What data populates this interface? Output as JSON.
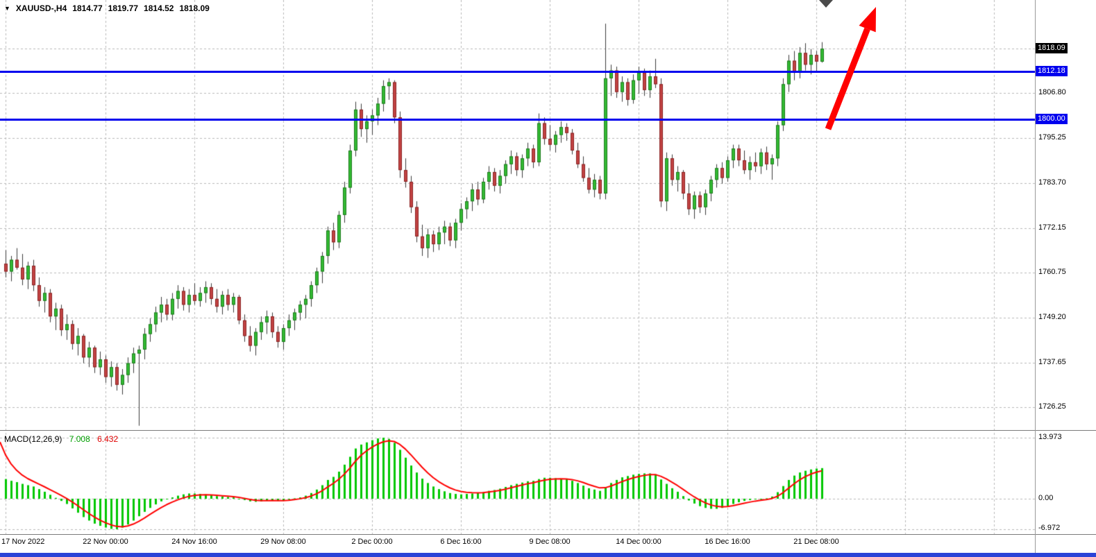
{
  "header": {
    "marker_icon": "▼",
    "symbol_period": "XAUUSD-,H4",
    "ohlc": {
      "open": "1814.77",
      "high": "1819.77",
      "low": "1814.52",
      "close": "1818.09"
    }
  },
  "macd_panel": {
    "title": "MACD(12,26,9)",
    "main_value": "7.008",
    "signal_value": "6.432",
    "axis": {
      "max": "13.973",
      "zero": "0.00",
      "min": "-6.972"
    }
  },
  "price_axis": {
    "labels": [
      {
        "text": "1818.09",
        "price": 1818.09,
        "style": "current"
      },
      {
        "text": "1812.18",
        "price": 1812.18,
        "style": "line"
      },
      {
        "text": "1806.80",
        "price": 1806.8,
        "style": "grid"
      },
      {
        "text": "1800.00",
        "price": 1800.0,
        "style": "line"
      },
      {
        "text": "1795.25",
        "price": 1795.25,
        "style": "grid"
      },
      {
        "text": "1783.70",
        "price": 1783.7,
        "style": "grid"
      },
      {
        "text": "1772.15",
        "price": 1772.15,
        "style": "grid"
      },
      {
        "text": "1760.75",
        "price": 1760.75,
        "style": "grid"
      },
      {
        "text": "1749.20",
        "price": 1749.2,
        "style": "grid"
      },
      {
        "text": "1737.65",
        "price": 1737.65,
        "style": "grid"
      },
      {
        "text": "1726.25",
        "price": 1726.25,
        "style": "grid"
      }
    ]
  },
  "colors": {
    "background": "#ffffff",
    "grid": "#b9b9b9",
    "up_fill": "#33bb33",
    "up_border": "#1e7a1e",
    "down_fill": "#c24343",
    "down_border": "#8a2323",
    "wick": "#3a3a3a",
    "hline": "#0000ee",
    "current_label_bg": "#000000",
    "macd_hist": "#00c800",
    "macd_signal": "#ff0000",
    "arrow": "#ff0000",
    "bottom_bar": "#2b43d7"
  },
  "chart_data": {
    "type": "candlestick",
    "symbol": "XAUUSD-",
    "timeframe": "H4",
    "current_price": 1818.09,
    "grid_prices": [
      1806.8,
      1795.25,
      1783.7,
      1772.15,
      1760.75,
      1749.2,
      1737.65,
      1726.25
    ],
    "hlines": [
      {
        "price": 1812.18,
        "label": "1812.18"
      },
      {
        "price": 1800.0,
        "label": "1800.00"
      }
    ],
    "time_ticks": [
      {
        "label": "17 Nov 2022",
        "bar": 0
      },
      {
        "label": "22 Nov 00:00",
        "bar": 18
      },
      {
        "label": "24 Nov 16:00",
        "bar": 34
      },
      {
        "label": "29 Nov 08:00",
        "bar": 50
      },
      {
        "label": "2 Dec 00:00",
        "bar": 66
      },
      {
        "label": "6 Dec 16:00",
        "bar": 82
      },
      {
        "label": "9 Dec 08:00",
        "bar": 98
      },
      {
        "label": "14 Dec 00:00",
        "bar": 114
      },
      {
        "label": "16 Dec 16:00",
        "bar": 130
      },
      {
        "label": "21 Dec 08:00",
        "bar": 146
      }
    ],
    "extra_grid_bars": [
      162,
      178
    ],
    "candles_ohlc": [
      [
        1763.0,
        1766.5,
        1759.5,
        1761.0
      ],
      [
        1761.0,
        1765.0,
        1758.5,
        1764.0
      ],
      [
        1764.0,
        1767.0,
        1761.5,
        1762.0
      ],
      [
        1762.0,
        1765.5,
        1757.5,
        1759.0
      ],
      [
        1759.0,
        1763.5,
        1756.5,
        1762.5
      ],
      [
        1762.5,
        1764.0,
        1756.0,
        1757.5
      ],
      [
        1757.5,
        1759.5,
        1752.0,
        1753.5
      ],
      [
        1753.5,
        1757.0,
        1750.5,
        1755.5
      ],
      [
        1755.5,
        1756.5,
        1748.0,
        1749.5
      ],
      [
        1749.5,
        1753.0,
        1746.0,
        1751.5
      ],
      [
        1751.5,
        1752.5,
        1744.5,
        1746.0
      ],
      [
        1746.0,
        1750.0,
        1743.5,
        1747.5
      ],
      [
        1747.5,
        1748.5,
        1741.0,
        1742.5
      ],
      [
        1742.5,
        1746.5,
        1739.5,
        1744.5
      ],
      [
        1744.5,
        1745.0,
        1737.5,
        1739.0
      ],
      [
        1739.0,
        1743.0,
        1736.5,
        1741.5
      ],
      [
        1741.5,
        1742.0,
        1735.0,
        1736.5
      ],
      [
        1736.5,
        1740.5,
        1734.5,
        1738.5
      ],
      [
        1738.5,
        1739.5,
        1732.5,
        1734.0
      ],
      [
        1734.0,
        1738.0,
        1731.5,
        1736.5
      ],
      [
        1736.5,
        1737.5,
        1730.5,
        1732.0
      ],
      [
        1732.0,
        1736.0,
        1729.5,
        1734.5
      ],
      [
        1734.5,
        1739.0,
        1732.5,
        1737.5
      ],
      [
        1737.5,
        1741.5,
        1735.0,
        1740.0
      ],
      [
        1740.0,
        1742.0,
        1721.5,
        1741.0
      ],
      [
        1741.0,
        1746.5,
        1738.5,
        1745.0
      ],
      [
        1745.0,
        1749.0,
        1743.0,
        1747.5
      ],
      [
        1747.5,
        1752.0,
        1745.5,
        1750.5
      ],
      [
        1750.5,
        1754.5,
        1748.0,
        1752.5
      ],
      [
        1752.5,
        1754.0,
        1748.5,
        1750.0
      ],
      [
        1750.0,
        1755.5,
        1748.5,
        1754.0
      ],
      [
        1754.0,
        1757.5,
        1751.5,
        1756.0
      ],
      [
        1756.0,
        1757.0,
        1751.0,
        1752.5
      ],
      [
        1752.5,
        1756.5,
        1750.5,
        1755.0
      ],
      [
        1755.0,
        1758.0,
        1752.5,
        1753.5
      ],
      [
        1753.5,
        1757.0,
        1752.0,
        1755.5
      ],
      [
        1755.5,
        1758.5,
        1753.0,
        1757.0
      ],
      [
        1757.0,
        1758.0,
        1752.5,
        1754.0
      ],
      [
        1754.0,
        1756.5,
        1750.5,
        1752.0
      ],
      [
        1752.0,
        1756.0,
        1750.0,
        1755.0
      ],
      [
        1755.0,
        1756.5,
        1751.0,
        1752.5
      ],
      [
        1752.5,
        1755.5,
        1750.5,
        1754.5
      ],
      [
        1754.5,
        1755.0,
        1747.5,
        1748.5
      ],
      [
        1748.5,
        1750.0,
        1743.0,
        1744.5
      ],
      [
        1744.5,
        1747.0,
        1740.5,
        1742.0
      ],
      [
        1742.0,
        1746.5,
        1739.5,
        1745.5
      ],
      [
        1745.5,
        1749.5,
        1743.5,
        1748.0
      ],
      [
        1748.0,
        1751.0,
        1745.0,
        1749.5
      ],
      [
        1749.5,
        1750.5,
        1744.0,
        1745.5
      ],
      [
        1745.5,
        1747.0,
        1741.5,
        1743.0
      ],
      [
        1743.0,
        1747.5,
        1741.0,
        1746.5
      ],
      [
        1746.5,
        1750.0,
        1744.5,
        1748.5
      ],
      [
        1748.5,
        1751.5,
        1746.0,
        1750.5
      ],
      [
        1750.5,
        1753.5,
        1748.5,
        1752.5
      ],
      [
        1752.5,
        1755.0,
        1749.0,
        1754.0
      ],
      [
        1754.0,
        1758.5,
        1752.0,
        1757.5
      ],
      [
        1757.5,
        1762.0,
        1755.5,
        1761.0
      ],
      [
        1761.0,
        1766.0,
        1758.0,
        1765.0
      ],
      [
        1765.0,
        1772.5,
        1763.0,
        1771.5
      ],
      [
        1771.5,
        1773.5,
        1766.5,
        1768.5
      ],
      [
        1768.5,
        1776.5,
        1767.0,
        1775.5
      ],
      [
        1775.5,
        1784.0,
        1773.5,
        1782.5
      ],
      [
        1782.5,
        1793.5,
        1781.0,
        1792.0
      ],
      [
        1792.0,
        1804.5,
        1790.5,
        1802.5
      ],
      [
        1802.5,
        1804.0,
        1795.5,
        1797.5
      ],
      [
        1797.5,
        1801.0,
        1794.0,
        1799.5
      ],
      [
        1799.5,
        1802.5,
        1796.0,
        1801.0
      ],
      [
        1801.0,
        1805.5,
        1798.5,
        1804.0
      ],
      [
        1804.0,
        1810.0,
        1802.0,
        1808.5
      ],
      [
        1808.5,
        1810.5,
        1805.0,
        1809.5
      ],
      [
        1809.5,
        1810.0,
        1799.0,
        1800.5
      ],
      [
        1800.5,
        1802.0,
        1785.0,
        1787.0
      ],
      [
        1787.0,
        1790.0,
        1782.5,
        1784.0
      ],
      [
        1784.0,
        1785.5,
        1776.0,
        1777.5
      ],
      [
        1777.5,
        1779.0,
        1768.5,
        1770.0
      ],
      [
        1770.0,
        1773.0,
        1765.0,
        1767.0
      ],
      [
        1767.0,
        1772.0,
        1764.5,
        1770.5
      ],
      [
        1770.5,
        1771.5,
        1766.0,
        1768.0
      ],
      [
        1768.0,
        1772.5,
        1766.5,
        1771.0
      ],
      [
        1771.0,
        1774.0,
        1768.0,
        1772.5
      ],
      [
        1772.5,
        1773.5,
        1767.5,
        1769.0
      ],
      [
        1769.0,
        1774.5,
        1767.0,
        1773.5
      ],
      [
        1773.5,
        1778.5,
        1771.5,
        1777.0
      ],
      [
        1777.0,
        1780.0,
        1774.5,
        1779.0
      ],
      [
        1779.0,
        1783.5,
        1776.5,
        1782.0
      ],
      [
        1782.0,
        1784.0,
        1778.0,
        1779.5
      ],
      [
        1779.5,
        1785.0,
        1778.5,
        1784.0
      ],
      [
        1784.0,
        1788.0,
        1782.0,
        1786.5
      ],
      [
        1786.5,
        1787.5,
        1781.5,
        1783.0
      ],
      [
        1783.0,
        1787.0,
        1781.0,
        1785.5
      ],
      [
        1785.5,
        1789.5,
        1783.5,
        1788.5
      ],
      [
        1788.5,
        1792.0,
        1786.0,
        1790.5
      ],
      [
        1790.5,
        1791.5,
        1785.5,
        1787.0
      ],
      [
        1787.0,
        1791.0,
        1785.0,
        1790.0
      ],
      [
        1790.0,
        1794.0,
        1788.0,
        1792.5
      ],
      [
        1792.5,
        1793.5,
        1787.5,
        1789.0
      ],
      [
        1789.0,
        1801.5,
        1788.0,
        1799.0
      ],
      [
        1799.0,
        1800.5,
        1793.5,
        1795.0
      ],
      [
        1795.0,
        1798.5,
        1792.0,
        1793.5
      ],
      [
        1793.5,
        1797.0,
        1791.5,
        1796.0
      ],
      [
        1796.0,
        1799.5,
        1794.0,
        1798.0
      ],
      [
        1798.0,
        1799.0,
        1794.5,
        1796.5
      ],
      [
        1796.5,
        1797.5,
        1791.0,
        1792.0
      ],
      [
        1792.0,
        1794.0,
        1787.5,
        1788.5
      ],
      [
        1788.5,
        1790.5,
        1784.0,
        1785.0
      ],
      [
        1785.0,
        1787.5,
        1781.0,
        1782.0
      ],
      [
        1782.0,
        1786.0,
        1780.0,
        1784.5
      ],
      [
        1784.5,
        1785.5,
        1779.5,
        1781.0
      ],
      [
        1781.0,
        1824.5,
        1779.5,
        1810.5
      ],
      [
        1810.5,
        1814.0,
        1806.0,
        1812.5
      ],
      [
        1812.5,
        1813.5,
        1805.5,
        1807.0
      ],
      [
        1807.0,
        1811.0,
        1804.5,
        1809.5
      ],
      [
        1809.5,
        1810.5,
        1803.5,
        1805.0
      ],
      [
        1805.0,
        1811.5,
        1804.0,
        1810.0
      ],
      [
        1810.0,
        1813.5,
        1806.5,
        1812.0
      ],
      [
        1812.0,
        1813.0,
        1806.0,
        1807.5
      ],
      [
        1807.5,
        1812.5,
        1805.5,
        1811.0
      ],
      [
        1811.0,
        1815.5,
        1808.0,
        1809.0
      ],
      [
        1809.0,
        1810.5,
        1777.5,
        1779.0
      ],
      [
        1779.0,
        1791.5,
        1776.5,
        1790.0
      ],
      [
        1790.0,
        1791.0,
        1783.0,
        1784.5
      ],
      [
        1784.5,
        1788.0,
        1781.5,
        1786.5
      ],
      [
        1786.5,
        1787.0,
        1779.5,
        1781.0
      ],
      [
        1781.0,
        1783.5,
        1775.5,
        1777.0
      ],
      [
        1777.0,
        1781.5,
        1774.5,
        1780.5
      ],
      [
        1780.5,
        1781.5,
        1776.0,
        1777.5
      ],
      [
        1777.5,
        1782.0,
        1775.5,
        1781.0
      ],
      [
        1781.0,
        1785.5,
        1779.0,
        1784.5
      ],
      [
        1784.5,
        1788.5,
        1782.5,
        1787.5
      ],
      [
        1787.5,
        1789.0,
        1783.5,
        1785.0
      ],
      [
        1785.0,
        1790.5,
        1784.0,
        1789.5
      ],
      [
        1789.5,
        1793.5,
        1787.5,
        1792.5
      ],
      [
        1792.5,
        1793.5,
        1788.0,
        1789.5
      ],
      [
        1789.5,
        1792.0,
        1786.0,
        1787.0
      ],
      [
        1787.0,
        1790.5,
        1784.5,
        1789.0
      ],
      [
        1789.0,
        1791.5,
        1786.5,
        1788.0
      ],
      [
        1788.0,
        1792.5,
        1786.0,
        1791.5
      ],
      [
        1791.5,
        1793.0,
        1787.0,
        1788.5
      ],
      [
        1788.5,
        1791.0,
        1784.5,
        1790.0
      ],
      [
        1790.0,
        1799.5,
        1788.0,
        1798.5
      ],
      [
        1798.5,
        1810.5,
        1797.0,
        1809.0
      ],
      [
        1809.0,
        1816.5,
        1807.0,
        1815.0
      ],
      [
        1815.0,
        1817.5,
        1810.0,
        1812.0
      ],
      [
        1812.0,
        1818.5,
        1810.5,
        1817.0
      ],
      [
        1817.0,
        1819.5,
        1812.5,
        1814.0
      ],
      [
        1814.0,
        1818.0,
        1811.5,
        1816.5
      ],
      [
        1816.5,
        1817.5,
        1812.0,
        1814.8
      ],
      [
        1814.77,
        1819.77,
        1814.52,
        1818.09
      ]
    ],
    "macd": {
      "params": [
        12,
        26,
        9
      ],
      "axis_range": [
        -6.972,
        13.973
      ],
      "last_main": 7.008,
      "last_signal": 6.432,
      "signal_seed": 13.0,
      "signal_alpha": 0.35,
      "histogram": [
        4.5,
        4.1,
        3.8,
        3.4,
        3.1,
        2.8,
        2.2,
        1.6,
        0.9,
        0.2,
        -0.5,
        -1.2,
        -2.2,
        -3.2,
        -4.2,
        -5.0,
        -5.7,
        -6.2,
        -6.6,
        -6.9,
        -6.972,
        -6.6,
        -5.9,
        -5.0,
        -4.0,
        -3.0,
        -2.1,
        -1.3,
        -0.6,
        -0.1,
        0.3,
        0.7,
        1.0,
        1.2,
        1.2,
        1.1,
        1.0,
        0.8,
        0.6,
        0.5,
        0.4,
        0.3,
        0.0,
        -0.3,
        -0.6,
        -0.7,
        -0.6,
        -0.4,
        -0.4,
        -0.5,
        -0.4,
        -0.2,
        0.1,
        0.3,
        0.7,
        1.3,
        2.1,
        3.1,
        4.3,
        5.0,
        6.2,
        7.8,
        9.6,
        11.5,
        12.4,
        12.9,
        13.4,
        13.8,
        13.973,
        13.7,
        12.8,
        11.2,
        9.4,
        7.6,
        6.0,
        4.6,
        3.6,
        2.8,
        2.2,
        1.7,
        1.3,
        1.1,
        1.0,
        1.1,
        1.2,
        1.3,
        1.5,
        1.8,
        2.0,
        2.3,
        2.7,
        3.1,
        3.4,
        3.7,
        4.0,
        4.1,
        4.5,
        4.8,
        4.8,
        4.7,
        4.6,
        4.5,
        4.1,
        3.6,
        3.0,
        2.4,
        2.1,
        1.8,
        2.6,
        3.6,
        4.3,
        4.9,
        5.2,
        5.5,
        5.7,
        5.8,
        5.8,
        5.6,
        4.4,
        3.4,
        2.4,
        1.6,
        0.6,
        -0.4,
        -1.1,
        -1.7,
        -2.1,
        -2.3,
        -2.3,
        -2.1,
        -1.7,
        -1.2,
        -0.8,
        -0.5,
        -0.3,
        -0.1,
        0.0,
        0.1,
        0.5,
        1.5,
        2.9,
        4.3,
        5.3,
        6.0,
        6.4,
        6.7,
        6.9,
        7.008
      ]
    },
    "annotations": [
      {
        "type": "arrow-up",
        "color": "#ff0000",
        "from": [
          1193,
          186
        ],
        "to": [
          1262,
          10
        ]
      }
    ]
  }
}
